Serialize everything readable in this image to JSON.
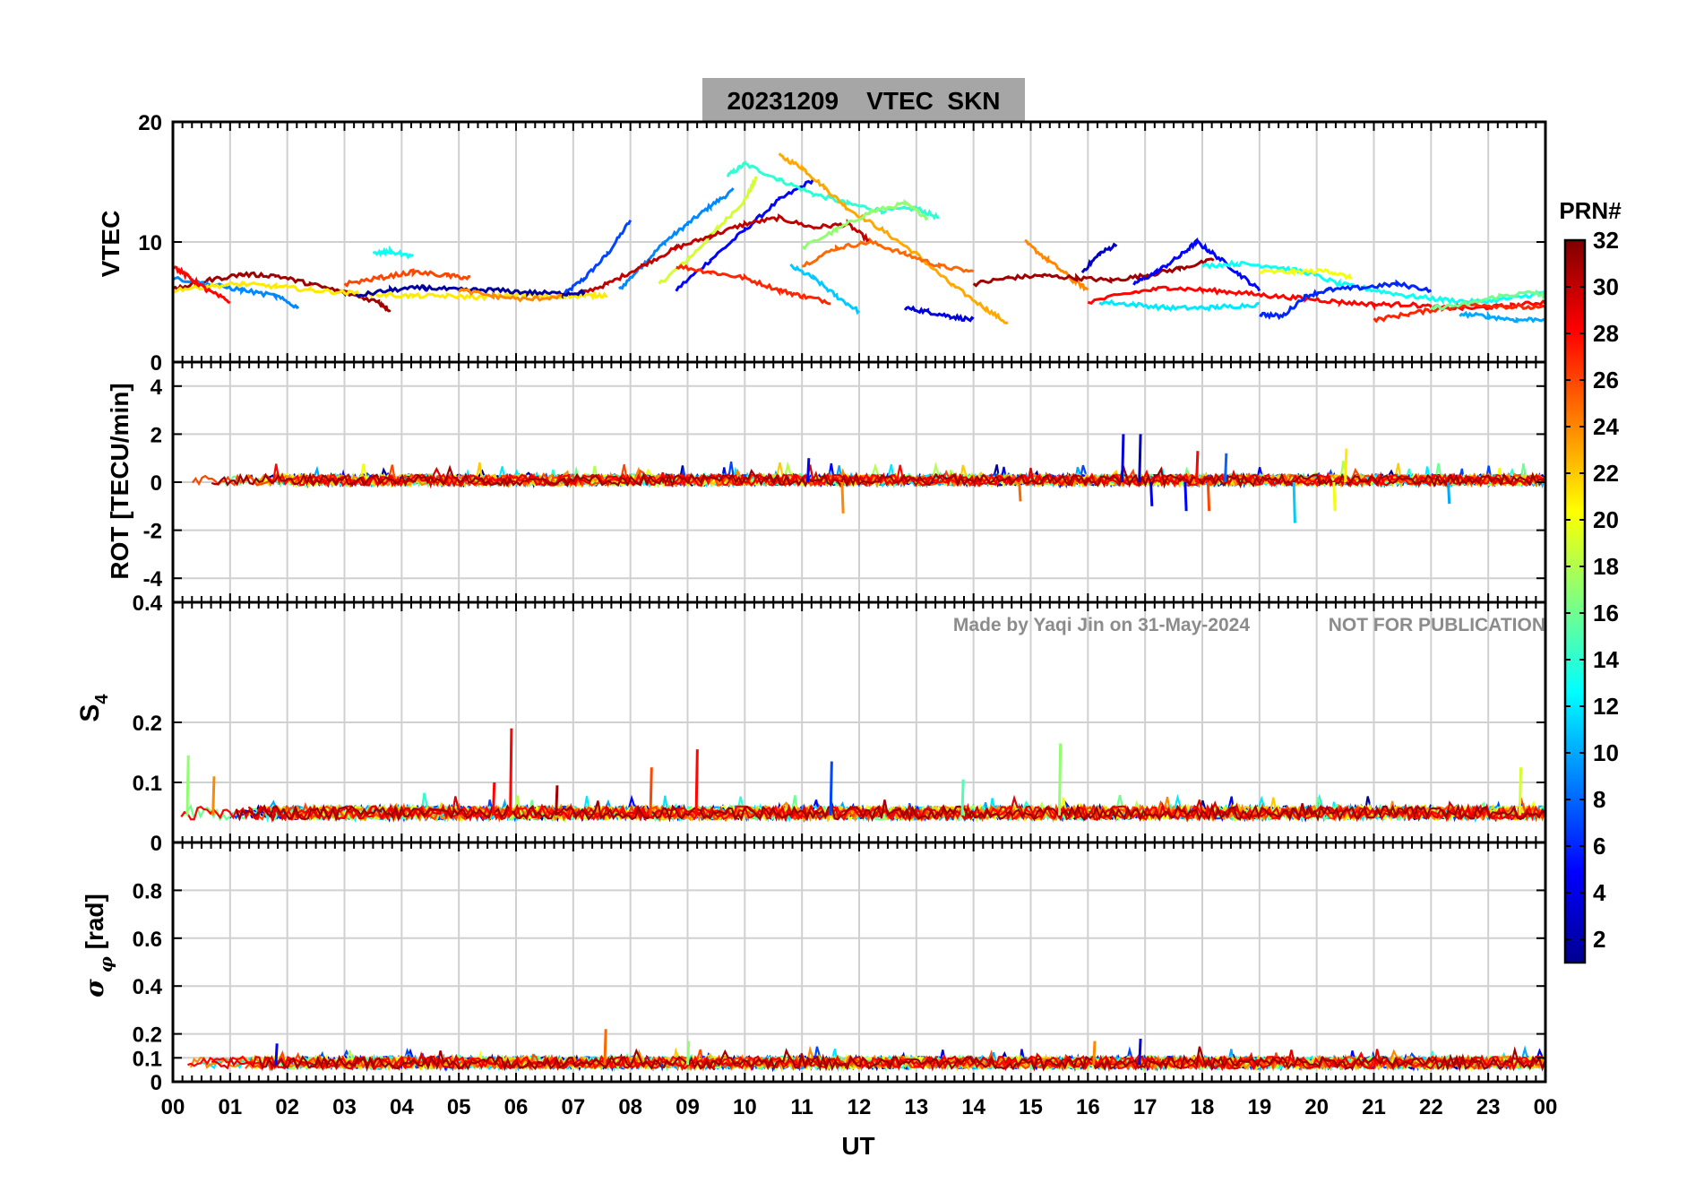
{
  "figure": {
    "title": "20231209    VTEC  SKN",
    "watermark_left": "Made by Yaqi Jin on 31-May-2024",
    "watermark_right": "NOT FOR PUBLICATION",
    "title_bg_color": "#a6a6a6"
  },
  "chart_data": [
    {
      "type": "line",
      "panel": "vtec",
      "ylabel": "VTEC",
      "ylim": [
        0,
        20
      ],
      "yticks": [
        0,
        10,
        20
      ],
      "xlim": [
        0,
        24
      ],
      "series": [
        {
          "prn": 7,
          "x": [
            6.8,
            7.2,
            7.6,
            8.0
          ],
          "y": [
            5.5,
            7.0,
            9.0,
            11.8
          ]
        },
        {
          "prn": 9,
          "x": [
            7.8,
            8.2,
            8.6,
            9.0,
            9.4,
            9.8
          ],
          "y": [
            6.0,
            8.0,
            10.0,
            11.5,
            13.0,
            14.3
          ]
        },
        {
          "prn": 19,
          "x": [
            8.5,
            9.0,
            9.5,
            10.0,
            10.2
          ],
          "y": [
            6.5,
            8.5,
            11.0,
            13.5,
            15.3
          ]
        },
        {
          "prn": 5,
          "x": [
            8.8,
            9.4,
            10.0,
            10.6,
            11.2
          ],
          "y": [
            6.0,
            8.5,
            11.0,
            13.5,
            15.2
          ]
        },
        {
          "prn": 14,
          "x": [
            9.7,
            10.0,
            10.6,
            11.2,
            11.8,
            12.4,
            13.0,
            13.4
          ],
          "y": [
            15.5,
            16.5,
            15.2,
            14.0,
            13.2,
            12.6,
            12.8,
            12.0
          ]
        },
        {
          "prn": 23,
          "x": [
            10.6,
            11.0,
            11.4,
            11.8,
            12.4,
            13.0,
            13.6,
            14.2,
            14.6
          ],
          "y": [
            17.2,
            16.2,
            14.5,
            12.8,
            11.0,
            9.0,
            6.5,
            4.5,
            3.2
          ]
        },
        {
          "prn": 30,
          "x": [
            7.0,
            7.6,
            8.2,
            8.8,
            9.4,
            10.0,
            10.6,
            11.2,
            11.8,
            12.2
          ],
          "y": [
            5.5,
            6.5,
            8.0,
            9.5,
            10.5,
            11.5,
            12.0,
            11.2,
            11.5,
            10.0
          ]
        },
        {
          "prn": 11,
          "x": [
            10.8,
            11.2,
            11.6,
            12.0
          ],
          "y": [
            8.0,
            7.0,
            5.5,
            4.2
          ]
        },
        {
          "prn": 17,
          "x": [
            11.0,
            11.6,
            12.2,
            12.8,
            13.2
          ],
          "y": [
            9.5,
            11.0,
            12.5,
            13.2,
            12.0
          ]
        },
        {
          "prn": 27,
          "x": [
            8.8,
            9.4,
            10.0,
            10.6,
            11.0,
            11.5
          ],
          "y": [
            8.0,
            7.5,
            7.0,
            6.0,
            5.5,
            5.0
          ]
        },
        {
          "prn": 25,
          "x": [
            11.0,
            11.6,
            12.2,
            12.8,
            13.4,
            14.0
          ],
          "y": [
            8.0,
            9.5,
            10.0,
            9.0,
            8.0,
            7.5
          ]
        },
        {
          "prn": 4,
          "x": [
            12.8,
            13.2,
            13.6,
            14.0
          ],
          "y": [
            4.5,
            4.2,
            3.8,
            3.5
          ]
        },
        {
          "prn": 24,
          "x": [
            14.9,
            15.3,
            15.7,
            16.0
          ],
          "y": [
            10.0,
            8.5,
            7.0,
            6.0
          ]
        },
        {
          "prn": 3,
          "x": [
            15.9,
            16.2,
            16.5
          ],
          "y": [
            7.5,
            9.0,
            9.8
          ]
        },
        {
          "prn": 31,
          "x": [
            14.0,
            14.6,
            15.2,
            15.8,
            16.4,
            17.0,
            17.6,
            18.2
          ],
          "y": [
            6.5,
            7.0,
            7.2,
            7.0,
            6.8,
            7.2,
            7.8,
            8.5
          ]
        },
        {
          "prn": 5,
          "x": [
            16.8,
            17.2,
            17.6,
            17.9,
            18.2,
            18.6,
            19.0
          ],
          "y": [
            6.5,
            7.5,
            8.8,
            10.0,
            9.0,
            7.5,
            6.0
          ]
        },
        {
          "prn": 12,
          "x": [
            16.2,
            16.8,
            17.4,
            18.0,
            18.4,
            19.0
          ],
          "y": [
            5.0,
            4.8,
            4.5,
            4.5,
            4.6,
            4.8
          ]
        },
        {
          "prn": 13,
          "x": [
            18.0,
            18.6,
            19.2,
            19.8,
            20.4,
            21.0,
            21.6,
            22.2,
            22.8,
            23.4,
            24.0
          ],
          "y": [
            8.0,
            8.2,
            8.0,
            7.5,
            6.5,
            6.0,
            5.5,
            5.2,
            5.0,
            5.3,
            5.8
          ]
        },
        {
          "prn": 20,
          "x": [
            19.0,
            19.6,
            20.2,
            20.6
          ],
          "y": [
            7.5,
            7.5,
            7.6,
            7.0
          ]
        },
        {
          "prn": 28,
          "x": [
            16.0,
            16.8,
            17.4,
            18.0,
            18.6,
            19.2,
            19.8,
            20.4,
            21.0,
            21.6,
            22.2,
            22.8,
            23.4,
            24.0
          ],
          "y": [
            5.0,
            5.8,
            6.2,
            6.0,
            5.8,
            5.5,
            5.3,
            5.0,
            4.8,
            4.8,
            4.5,
            4.5,
            4.7,
            5.0
          ]
        },
        {
          "prn": 6,
          "x": [
            19.0,
            19.4,
            19.8,
            20.2,
            20.8,
            21.4,
            22.0
          ],
          "y": [
            4.0,
            3.8,
            5.5,
            6.0,
            6.2,
            6.5,
            6.0
          ]
        },
        {
          "prn": 27,
          "x": [
            21.0,
            21.6,
            22.2,
            22.8,
            23.4,
            24.0
          ],
          "y": [
            3.5,
            4.0,
            4.5,
            4.8,
            4.6,
            4.5
          ]
        },
        {
          "prn": 16,
          "x": [
            22.0,
            22.6,
            23.2,
            23.8,
            24.0
          ],
          "y": [
            4.5,
            4.8,
            5.5,
            5.8,
            5.5
          ]
        },
        {
          "prn": 10,
          "x": [
            22.5,
            23.0,
            23.5,
            24.0
          ],
          "y": [
            4.0,
            3.8,
            3.5,
            3.6
          ]
        },
        {
          "prn": 31,
          "x": [
            0.0,
            0.6,
            1.2,
            1.8,
            2.4,
            3.0,
            3.6,
            3.8
          ],
          "y": [
            6.0,
            6.8,
            7.3,
            7.2,
            6.5,
            5.8,
            5.0,
            4.3
          ]
        },
        {
          "prn": 9,
          "x": [
            0.0,
            0.6,
            1.2,
            1.8,
            2.2
          ],
          "y": [
            7.0,
            6.5,
            6.0,
            5.5,
            4.5
          ]
        },
        {
          "prn": 21,
          "x": [
            0.0,
            0.6,
            1.2,
            1.8,
            2.4,
            3.0,
            3.6,
            4.2,
            4.8,
            5.4,
            6.0,
            6.6,
            7.2,
            7.6
          ],
          "y": [
            6.0,
            6.3,
            6.5,
            6.3,
            6.0,
            5.8,
            5.6,
            5.5,
            5.5,
            5.4,
            5.6,
            5.5,
            5.5,
            5.6
          ]
        },
        {
          "prn": 28,
          "x": [
            0.0,
            0.3,
            0.6,
            1.0
          ],
          "y": [
            8.0,
            7.0,
            6.0,
            5.0
          ]
        },
        {
          "prn": 26,
          "x": [
            3.0,
            3.6,
            4.2,
            4.8,
            5.2
          ],
          "y": [
            6.5,
            7.0,
            7.5,
            7.2,
            7.0
          ]
        },
        {
          "prn": 13,
          "x": [
            3.5,
            3.8,
            4.2
          ],
          "y": [
            9.0,
            9.2,
            8.8
          ]
        },
        {
          "prn": 2,
          "x": [
            3.2,
            3.8,
            4.4,
            5.0,
            5.6,
            6.2,
            6.8,
            7.2
          ],
          "y": [
            5.5,
            6.0,
            6.2,
            6.0,
            6.0,
            5.8,
            5.7,
            5.8
          ]
        },
        {
          "prn": 24,
          "x": [
            5.0,
            5.6,
            6.2,
            6.8
          ],
          "y": [
            6.0,
            5.5,
            5.2,
            5.5
          ]
        }
      ]
    },
    {
      "type": "line",
      "panel": "rot",
      "ylabel": "ROT [TECU/min]",
      "ylim": [
        -5,
        5
      ],
      "yticks": [
        -4,
        -2,
        0,
        2,
        4
      ],
      "xlim": [
        0,
        24
      ],
      "spikes": [
        {
          "x": 11.1,
          "y": 1.0,
          "prn": 5
        },
        {
          "x": 11.7,
          "y": -1.3,
          "prn": 24
        },
        {
          "x": 14.8,
          "y": -0.8,
          "prn": 25
        },
        {
          "x": 16.6,
          "y": 2.0,
          "prn": 4
        },
        {
          "x": 16.9,
          "y": 2.0,
          "prn": 3
        },
        {
          "x": 17.1,
          "y": -1.0,
          "prn": 4
        },
        {
          "x": 17.7,
          "y": -1.2,
          "prn": 5
        },
        {
          "x": 17.9,
          "y": 1.3,
          "prn": 28
        },
        {
          "x": 18.1,
          "y": -1.2,
          "prn": 26
        },
        {
          "x": 18.4,
          "y": 1.2,
          "prn": 8
        },
        {
          "x": 19.6,
          "y": -1.7,
          "prn": 11
        },
        {
          "x": 20.3,
          "y": -1.2,
          "prn": 20
        },
        {
          "x": 20.5,
          "y": 1.4,
          "prn": 21
        },
        {
          "x": 22.3,
          "y": -0.9,
          "prn": 10
        }
      ]
    },
    {
      "type": "line",
      "panel": "s4",
      "ylabel": "S4",
      "ylim": [
        0,
        0.4
      ],
      "yticks": [
        0,
        0.1,
        0.2,
        0.4
      ],
      "xlim": [
        0,
        24
      ],
      "spikes": [
        {
          "x": 0.25,
          "y": 0.145,
          "prn": 17
        },
        {
          "x": 0.7,
          "y": 0.11,
          "prn": 24
        },
        {
          "x": 5.6,
          "y": 0.1,
          "prn": 28
        },
        {
          "x": 5.9,
          "y": 0.19,
          "prn": 28
        },
        {
          "x": 6.7,
          "y": 0.095,
          "prn": 31
        },
        {
          "x": 8.35,
          "y": 0.125,
          "prn": 26
        },
        {
          "x": 9.15,
          "y": 0.155,
          "prn": 28
        },
        {
          "x": 11.5,
          "y": 0.135,
          "prn": 7
        },
        {
          "x": 13.8,
          "y": 0.105,
          "prn": 15
        },
        {
          "x": 15.5,
          "y": 0.165,
          "prn": 17
        },
        {
          "x": 23.55,
          "y": 0.125,
          "prn": 19
        }
      ]
    },
    {
      "type": "line",
      "panel": "sigma_phi",
      "ylabel": "σ φ [rad]",
      "ylim": [
        0,
        1
      ],
      "yticks": [
        0,
        0.1,
        0.2,
        0.4,
        0.6,
        0.8
      ],
      "xlim": [
        0,
        24
      ],
      "xlabel": "UT",
      "xticks": [
        "00",
        "01",
        "02",
        "03",
        "04",
        "05",
        "06",
        "07",
        "08",
        "09",
        "10",
        "11",
        "12",
        "13",
        "14",
        "15",
        "16",
        "17",
        "18",
        "19",
        "20",
        "21",
        "22",
        "23",
        "00"
      ],
      "spikes": [
        {
          "x": 1.8,
          "y": 0.16,
          "prn": 5
        },
        {
          "x": 7.55,
          "y": 0.22,
          "prn": 25
        },
        {
          "x": 9.0,
          "y": 0.17,
          "prn": 17
        },
        {
          "x": 16.1,
          "y": 0.17,
          "prn": 24
        },
        {
          "x": 16.9,
          "y": 0.18,
          "prn": 4
        }
      ]
    }
  ],
  "colorbar": {
    "label": "PRN#",
    "range": [
      1,
      32
    ],
    "ticks": [
      2,
      4,
      6,
      8,
      10,
      12,
      14,
      16,
      18,
      20,
      22,
      24,
      26,
      28,
      30,
      32
    ]
  }
}
